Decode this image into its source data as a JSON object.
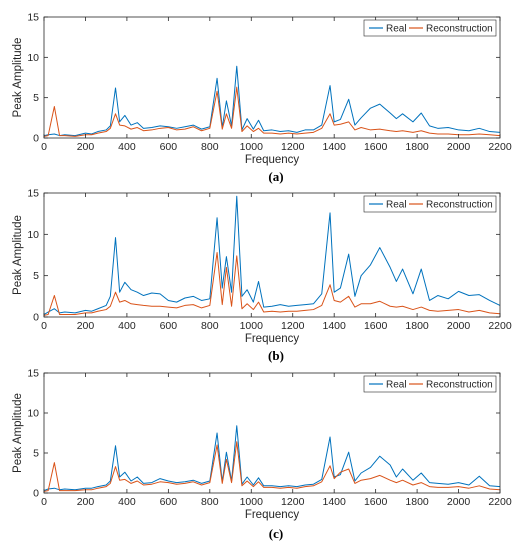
{
  "chart_data": [
    {
      "type": "line",
      "caption": "(a)",
      "xlabel": "Frequency",
      "ylabel": "Peak Amplitude",
      "xlim": [
        0,
        2200
      ],
      "ylim": [
        0,
        15
      ],
      "xticks": [
        0,
        200,
        400,
        600,
        800,
        1000,
        1200,
        1400,
        1600,
        1800,
        2000,
        2200
      ],
      "yticks": [
        0,
        5,
        10,
        15
      ],
      "legend": "top-right",
      "series": [
        {
          "name": "Real",
          "color": "#0072BD",
          "x": [
            0,
            20,
            50,
            75,
            100,
            150,
            200,
            230,
            260,
            300,
            320,
            345,
            365,
            390,
            420,
            450,
            480,
            520,
            560,
            600,
            640,
            680,
            720,
            760,
            800,
            835,
            860,
            880,
            905,
            930,
            955,
            980,
            1010,
            1035,
            1060,
            1100,
            1140,
            1180,
            1220,
            1260,
            1300,
            1340,
            1380,
            1400,
            1430,
            1470,
            1500,
            1530,
            1575,
            1620,
            1670,
            1700,
            1730,
            1780,
            1820,
            1860,
            1900,
            1950,
            2000,
            2050,
            2100,
            2150,
            2200
          ],
          "y": [
            0.3,
            0.4,
            0.5,
            0.3,
            0.4,
            0.3,
            0.6,
            0.5,
            0.8,
            1.0,
            1.5,
            6.2,
            2.0,
            2.8,
            1.6,
            1.9,
            1.2,
            1.3,
            1.5,
            1.4,
            1.2,
            1.4,
            1.6,
            1.1,
            1.4,
            7.4,
            1.3,
            4.6,
            1.5,
            8.9,
            1.0,
            2.4,
            1.1,
            2.2,
            0.9,
            1.0,
            0.8,
            0.9,
            0.7,
            1.0,
            1.0,
            1.6,
            6.5,
            2.0,
            2.3,
            4.8,
            1.6,
            2.5,
            3.7,
            4.2,
            3.1,
            2.4,
            3.0,
            2.0,
            3.1,
            1.5,
            1.2,
            1.3,
            1.0,
            0.9,
            1.2,
            0.8,
            0.7
          ]
        },
        {
          "name": "Reconstruction",
          "color": "#D95319",
          "x": [
            0,
            20,
            50,
            75,
            100,
            150,
            200,
            230,
            260,
            300,
            320,
            345,
            365,
            390,
            420,
            450,
            480,
            520,
            560,
            600,
            640,
            680,
            720,
            760,
            800,
            835,
            860,
            880,
            905,
            930,
            955,
            980,
            1010,
            1035,
            1060,
            1100,
            1140,
            1180,
            1220,
            1260,
            1300,
            1340,
            1380,
            1400,
            1430,
            1470,
            1500,
            1530,
            1575,
            1620,
            1670,
            1700,
            1730,
            1780,
            1820,
            1860,
            1900,
            1950,
            2000,
            2050,
            2100,
            2150,
            2200
          ],
          "y": [
            0.2,
            0.3,
            3.9,
            0.3,
            0.3,
            0.2,
            0.4,
            0.4,
            0.6,
            0.8,
            1.2,
            3.0,
            1.6,
            1.5,
            1.1,
            1.3,
            0.9,
            1.0,
            1.2,
            1.3,
            1.0,
            1.1,
            1.4,
            0.9,
            1.2,
            5.8,
            1.1,
            3.0,
            1.2,
            6.3,
            0.8,
            1.5,
            0.8,
            1.2,
            0.6,
            0.6,
            0.5,
            0.6,
            0.5,
            0.6,
            0.7,
            1.2,
            3.0,
            1.6,
            1.7,
            2.0,
            1.0,
            1.3,
            1.0,
            1.1,
            0.9,
            0.8,
            0.9,
            0.7,
            0.9,
            0.6,
            0.5,
            0.5,
            0.4,
            0.4,
            0.5,
            0.4,
            0.3
          ]
        }
      ]
    },
    {
      "type": "line",
      "caption": "(b)",
      "xlabel": "Frequency",
      "ylabel": "Peak Amplitude",
      "xlim": [
        0,
        2200
      ],
      "ylim": [
        0,
        15
      ],
      "xticks": [
        0,
        200,
        400,
        600,
        800,
        1000,
        1200,
        1400,
        1600,
        1800,
        2000,
        2200
      ],
      "yticks": [
        0,
        5,
        10,
        15
      ],
      "legend": "top-right",
      "series": [
        {
          "name": "Real",
          "color": "#0072BD",
          "x": [
            0,
            20,
            50,
            75,
            100,
            150,
            200,
            230,
            260,
            300,
            320,
            345,
            365,
            390,
            420,
            450,
            480,
            520,
            560,
            600,
            640,
            680,
            720,
            760,
            800,
            835,
            860,
            880,
            905,
            930,
            955,
            980,
            1010,
            1035,
            1060,
            1100,
            1140,
            1180,
            1220,
            1260,
            1300,
            1340,
            1380,
            1400,
            1430,
            1470,
            1500,
            1530,
            1575,
            1620,
            1670,
            1700,
            1730,
            1780,
            1820,
            1860,
            1900,
            1950,
            2000,
            2050,
            2100,
            2150,
            2200
          ],
          "y": [
            0.3,
            0.6,
            1.0,
            0.5,
            0.6,
            0.5,
            0.8,
            0.7,
            1.0,
            1.4,
            2.5,
            9.6,
            3.0,
            4.2,
            3.3,
            3.0,
            2.6,
            2.9,
            2.8,
            2.0,
            1.8,
            2.3,
            2.5,
            2.0,
            2.2,
            12.0,
            3.5,
            7.3,
            3.0,
            14.6,
            2.5,
            3.3,
            1.8,
            4.3,
            1.2,
            1.3,
            1.5,
            1.3,
            1.4,
            1.5,
            1.6,
            2.8,
            12.6,
            3.0,
            3.5,
            7.6,
            2.5,
            5.0,
            6.3,
            8.4,
            6.0,
            4.3,
            5.8,
            2.8,
            5.8,
            2.0,
            2.6,
            2.2,
            3.1,
            2.6,
            2.7,
            2.0,
            1.4
          ]
        },
        {
          "name": "Reconstruction",
          "color": "#D95319",
          "x": [
            0,
            20,
            50,
            75,
            100,
            150,
            200,
            230,
            260,
            300,
            320,
            345,
            365,
            390,
            420,
            450,
            480,
            520,
            560,
            600,
            640,
            680,
            720,
            760,
            800,
            835,
            860,
            880,
            905,
            930,
            955,
            980,
            1010,
            1035,
            1060,
            1100,
            1140,
            1180,
            1220,
            1260,
            1300,
            1340,
            1380,
            1400,
            1430,
            1470,
            1500,
            1530,
            1575,
            1620,
            1670,
            1700,
            1730,
            1780,
            1820,
            1860,
            1900,
            1950,
            2000,
            2050,
            2100,
            2150,
            2200
          ],
          "y": [
            0.2,
            0.3,
            2.6,
            0.3,
            0.3,
            0.3,
            0.5,
            0.5,
            0.7,
            0.9,
            1.3,
            3.0,
            1.8,
            2.0,
            1.6,
            1.5,
            1.4,
            1.3,
            1.3,
            1.2,
            1.1,
            1.4,
            1.5,
            1.1,
            1.4,
            7.8,
            1.5,
            6.0,
            1.3,
            7.4,
            1.0,
            1.6,
            0.9,
            1.8,
            0.6,
            0.7,
            0.6,
            0.7,
            0.7,
            0.8,
            0.9,
            1.4,
            3.9,
            2.0,
            1.8,
            2.5,
            1.2,
            1.6,
            1.6,
            1.9,
            1.3,
            1.2,
            1.3,
            0.9,
            1.2,
            0.8,
            0.7,
            0.8,
            0.9,
            0.6,
            0.8,
            0.5,
            0.4
          ]
        }
      ]
    },
    {
      "type": "line",
      "caption": "(c)",
      "xlabel": "Frequency",
      "ylabel": "Peak Amplitude",
      "xlim": [
        0,
        2200
      ],
      "ylim": [
        0,
        15
      ],
      "xticks": [
        0,
        200,
        400,
        600,
        800,
        1000,
        1200,
        1400,
        1600,
        1800,
        2000,
        2200
      ],
      "yticks": [
        0,
        5,
        10,
        15
      ],
      "legend": "top-right",
      "series": [
        {
          "name": "Real",
          "color": "#0072BD",
          "x": [
            0,
            20,
            50,
            75,
            100,
            150,
            200,
            230,
            260,
            300,
            320,
            345,
            365,
            390,
            420,
            450,
            480,
            520,
            560,
            600,
            640,
            680,
            720,
            760,
            800,
            835,
            860,
            880,
            905,
            930,
            955,
            980,
            1010,
            1035,
            1060,
            1100,
            1140,
            1180,
            1220,
            1260,
            1300,
            1340,
            1380,
            1400,
            1430,
            1470,
            1500,
            1530,
            1575,
            1620,
            1670,
            1700,
            1730,
            1780,
            1820,
            1860,
            1900,
            1950,
            2000,
            2050,
            2100,
            2150,
            2200
          ],
          "y": [
            0.3,
            0.5,
            0.6,
            0.4,
            0.5,
            0.4,
            0.6,
            0.6,
            0.8,
            1.0,
            1.5,
            5.9,
            2.0,
            2.6,
            1.5,
            2.0,
            1.2,
            1.3,
            1.8,
            1.5,
            1.3,
            1.4,
            1.6,
            1.2,
            1.5,
            7.5,
            1.4,
            5.1,
            1.5,
            8.4,
            1.1,
            2.0,
            1.0,
            1.9,
            0.9,
            0.9,
            0.8,
            0.9,
            0.8,
            1.0,
            1.1,
            1.7,
            7.0,
            2.0,
            2.3,
            5.1,
            1.5,
            2.5,
            3.2,
            4.6,
            3.5,
            2.0,
            3.0,
            1.6,
            2.5,
            1.3,
            1.2,
            1.1,
            1.3,
            1.0,
            2.1,
            0.9,
            0.8
          ]
        },
        {
          "name": "Reconstruction",
          "color": "#D95319",
          "x": [
            0,
            20,
            50,
            75,
            100,
            150,
            200,
            230,
            260,
            300,
            320,
            345,
            365,
            390,
            420,
            450,
            480,
            520,
            560,
            600,
            640,
            680,
            720,
            760,
            800,
            835,
            860,
            880,
            905,
            930,
            955,
            980,
            1010,
            1035,
            1060,
            1100,
            1140,
            1180,
            1220,
            1260,
            1300,
            1340,
            1380,
            1400,
            1430,
            1470,
            1500,
            1530,
            1575,
            1620,
            1670,
            1700,
            1730,
            1780,
            1820,
            1860,
            1900,
            1950,
            2000,
            2050,
            2100,
            2150,
            2200
          ],
          "y": [
            0.2,
            0.3,
            3.8,
            0.3,
            0.3,
            0.3,
            0.4,
            0.4,
            0.6,
            0.8,
            1.2,
            3.3,
            1.6,
            1.7,
            1.2,
            1.5,
            1.0,
            1.1,
            1.4,
            1.3,
            1.1,
            1.2,
            1.4,
            1.0,
            1.3,
            6.0,
            1.2,
            4.2,
            1.3,
            6.4,
            0.9,
            1.5,
            0.8,
            1.4,
            0.7,
            0.7,
            0.6,
            0.7,
            0.6,
            0.8,
            0.9,
            1.4,
            3.4,
            1.8,
            2.6,
            3.0,
            1.2,
            1.6,
            1.8,
            2.2,
            1.6,
            1.3,
            1.6,
            1.0,
            1.3,
            0.8,
            0.7,
            0.7,
            0.8,
            0.6,
            0.9,
            0.5,
            0.4
          ]
        }
      ]
    }
  ]
}
